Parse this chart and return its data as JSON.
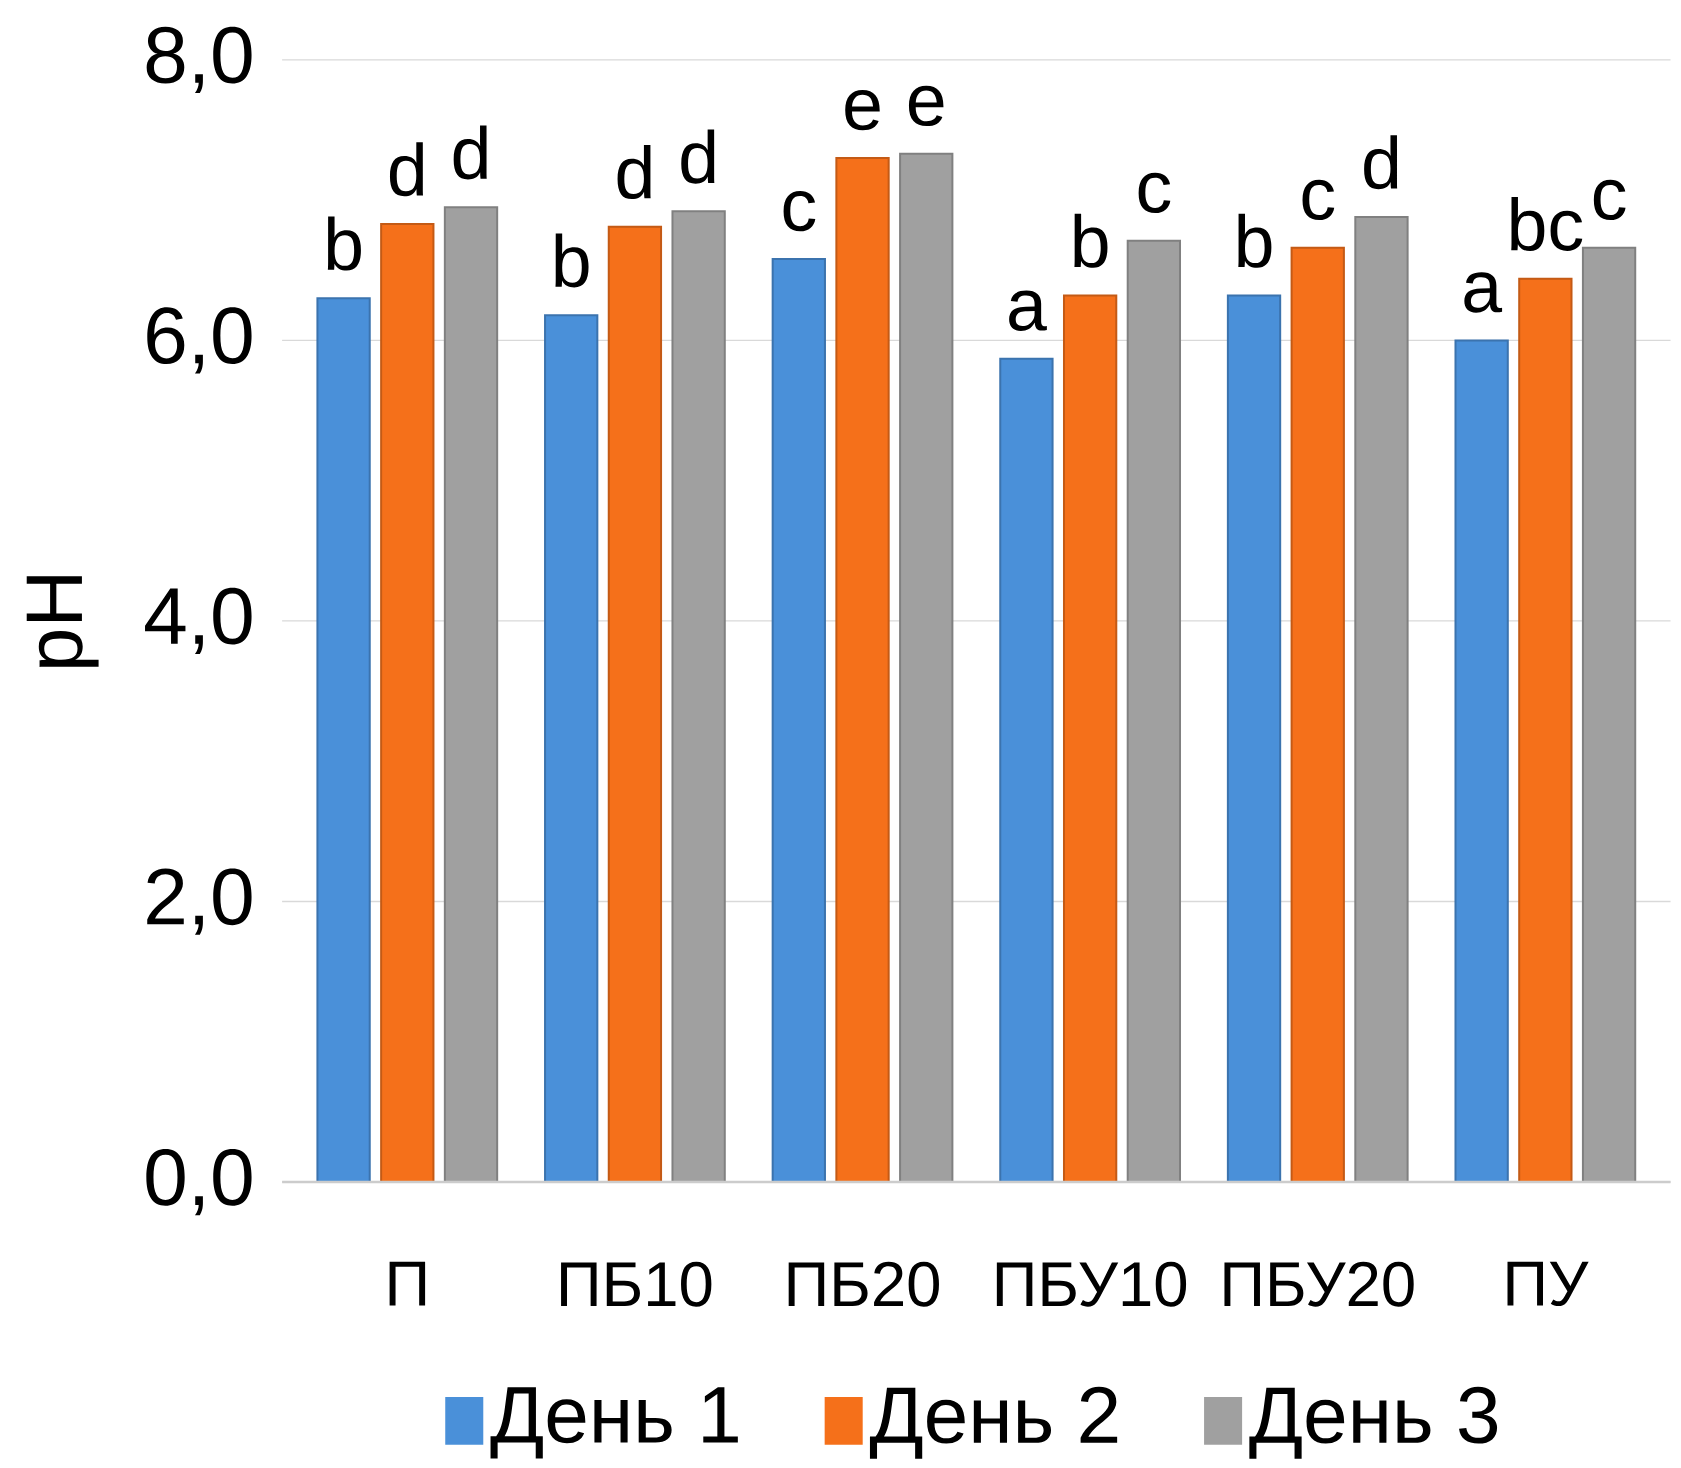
{
  "chart_data": {
    "type": "bar",
    "ylabel": "pH",
    "categories": [
      "П",
      "ПБ10",
      "ПБ20",
      "ПБУ10",
      "ПБУ20",
      "ПУ"
    ],
    "series": [
      {
        "name": "День 1",
        "color": "#4a90d9",
        "values": [
          6.3,
          6.18,
          6.58,
          5.87,
          6.32,
          6.0
        ],
        "value_labels": [
          "b",
          "b",
          "c",
          "a",
          "b",
          "a"
        ]
      },
      {
        "name": "День 2",
        "color": "#f5701a",
        "values": [
          6.83,
          6.81,
          7.3,
          6.32,
          6.66,
          6.44
        ],
        "value_labels": [
          "d",
          "d",
          "e",
          "b",
          "c",
          "bc"
        ]
      },
      {
        "name": "День 3",
        "color": "#a0a0a0",
        "values": [
          6.95,
          6.92,
          7.33,
          6.71,
          6.88,
          6.66
        ],
        "value_labels": [
          "d",
          "d",
          "e",
          "c",
          "d",
          "c"
        ]
      }
    ],
    "ylim": [
      0,
      8
    ],
    "yticks": [
      {
        "value": 0,
        "label": "0,0"
      },
      {
        "value": 2,
        "label": "2,0"
      },
      {
        "value": 4,
        "label": "4,0"
      },
      {
        "value": 6,
        "label": "6,0"
      },
      {
        "value": 8,
        "label": "8,0"
      }
    ],
    "grid": "y",
    "legend": "bottom"
  }
}
